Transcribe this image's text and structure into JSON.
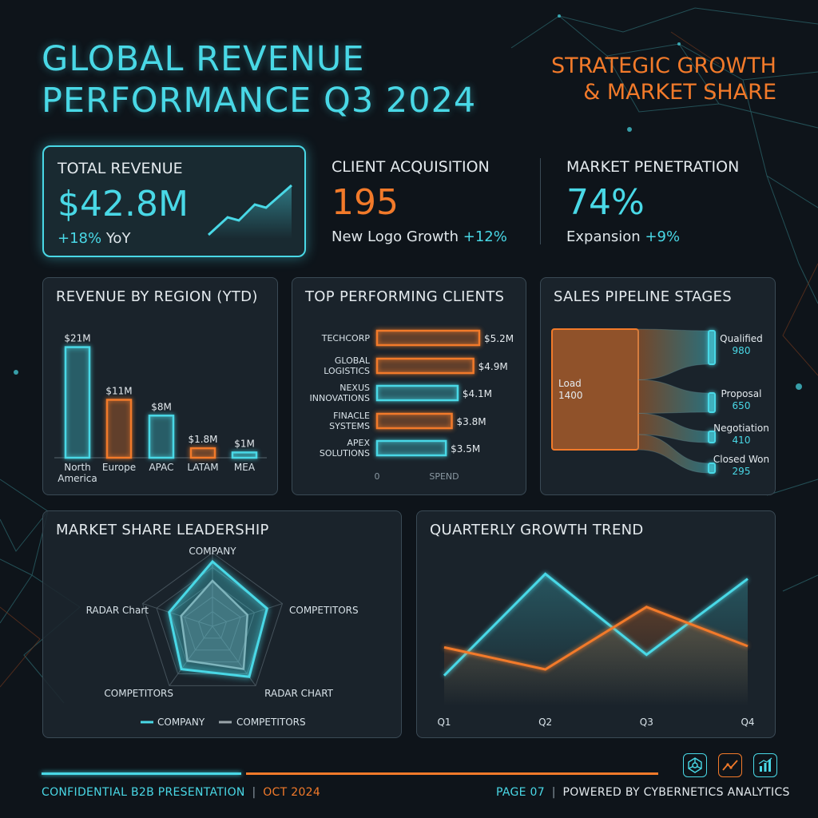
{
  "header": {
    "title_line1": "GLOBAL REVENUE",
    "title_line2": "PERFORMANCE Q3 2024",
    "subtitle_line1": "STRATEGIC GROWTH",
    "subtitle_line2": "& MARKET SHARE"
  },
  "kpis": {
    "revenue": {
      "label": "TOTAL REVENUE",
      "value": "$42.8M",
      "change": "+18%",
      "change_suffix": "YoY"
    },
    "clients": {
      "label": "CLIENT ACQUISITION",
      "value": "195",
      "sub": "New Logo Growth",
      "change": "+12%"
    },
    "market": {
      "label": "MARKET PENETRATION",
      "value": "74%",
      "sub": "Expansion",
      "change": "+9%"
    }
  },
  "colors": {
    "cyan": "#49d8e6",
    "orange": "#f27a2a",
    "panel": "#1c262e",
    "background": "#0e141a"
  },
  "panels": {
    "region_title": "REVENUE BY REGION (YTD)",
    "clients_title": "TOP PERFORMING CLIENTS",
    "pipeline_title": "SALES PIPELINE STAGES",
    "share_title": "MARKET SHARE LEADERSHIP",
    "trend_title": "QUARTERLY GROWTH TREND"
  },
  "chart_data": [
    {
      "type": "bar",
      "categories": [
        "North America",
        "Europe",
        "APAC",
        "LATAM",
        "MEA"
      ],
      "values": [
        21,
        11,
        8,
        1.8,
        1
      ],
      "data_labels": [
        "$21M",
        "$11M",
        "$8M",
        "$1.8M",
        "$1M"
      ],
      "series_colors": [
        "cyan",
        "orange",
        "cyan",
        "orange",
        "cyan"
      ],
      "ylim": [
        0,
        22
      ]
    },
    {
      "type": "bar",
      "orientation": "horizontal",
      "categories": [
        "TECHCORP",
        "GLOBAL LOGISTICS",
        "NEXUS INNOVATIONS",
        "FINACLE SYSTEMS",
        "APEX SOLUTIONS"
      ],
      "values": [
        5.2,
        4.9,
        4.1,
        3.8,
        3.5
      ],
      "data_labels": [
        "$5.2M",
        "$4.9M",
        "$4.1M",
        "$3.8M",
        "$3.5M"
      ],
      "series_colors": [
        "orange",
        "orange",
        "cyan",
        "orange",
        "cyan"
      ],
      "xlabel": "SPEND",
      "x_tick": "0",
      "xlim": [
        0,
        5.2
      ]
    },
    {
      "type": "sankey",
      "source": {
        "name": "Load",
        "value": 1400
      },
      "stages": [
        {
          "name": "Qualified",
          "value": 980
        },
        {
          "name": "Proposal",
          "value": 650
        },
        {
          "name": "Negotiation",
          "value": 410
        },
        {
          "name": "Closed Won",
          "value": 295
        }
      ]
    },
    {
      "type": "radar",
      "axes": [
        "COMPANY",
        "COMPETITORS",
        "RADAR CHART",
        "COMPETITORS",
        "RADAR Chart"
      ],
      "series": [
        {
          "name": "COMPANY",
          "values": [
            0.88,
            0.78,
            0.85,
            0.72,
            0.62
          ]
        },
        {
          "name": "COMPETITORS",
          "values": [
            0.62,
            0.5,
            0.72,
            0.58,
            0.45
          ]
        }
      ],
      "rmax": 1,
      "legend": "bottom"
    },
    {
      "type": "area",
      "x": [
        "Q1",
        "Q2",
        "Q3",
        "Q4"
      ],
      "series": [
        {
          "name": "series-cyan",
          "color": "cyan",
          "values": [
            2.5,
            10.8,
            4.2,
            10.4
          ]
        },
        {
          "name": "series-orange",
          "color": "orange",
          "values": [
            4.8,
            3.0,
            8.1,
            4.9
          ]
        }
      ],
      "ylim": [
        0,
        12
      ]
    }
  ],
  "footer": {
    "left": "CONFIDENTIAL B2B PRESENTATION",
    "sep": "|",
    "date": "OCT 2024",
    "page": "PAGE 07",
    "sep2": "|",
    "powered": "POWERED BY CYBERNETICS ANALYTICS"
  },
  "footer_icons": [
    "network-icon",
    "line-chart-icon",
    "bar-chart-icon"
  ]
}
